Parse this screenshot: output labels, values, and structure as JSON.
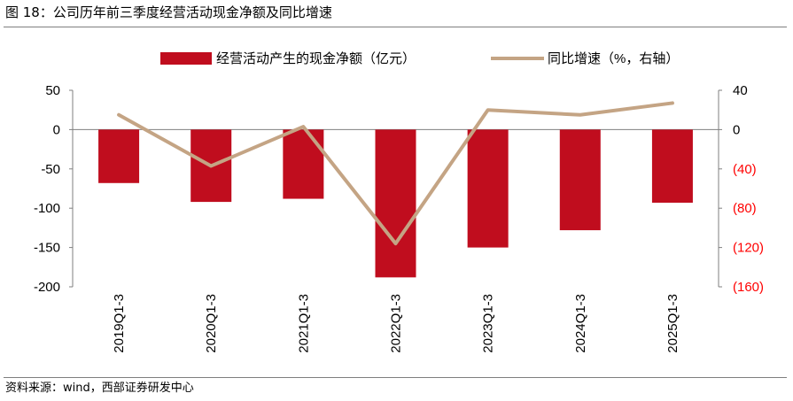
{
  "title": "图 18：公司历年前三季度经营活动现金净额及同比增速",
  "source": "资料来源：wind，西部证券研发中心",
  "colors": {
    "bar": "#c00d1e",
    "line": "#c4a484",
    "right_axis_negative": "#ff0000"
  },
  "chart_data": {
    "type": "bar",
    "categories": [
      "2019Q1-3",
      "2020Q1-3",
      "2021Q1-3",
      "2022Q1-3",
      "2023Q1-3",
      "2024Q1-3",
      "2025Q1-3"
    ],
    "series": [
      {
        "name": "经营活动产生的现金净额（亿元）",
        "type": "bar",
        "axis": "left",
        "values": [
          -68,
          -92,
          -88,
          -188,
          -150,
          -128,
          -93
        ]
      },
      {
        "name": "同比增速（%，右轴）",
        "type": "line",
        "axis": "right",
        "values": [
          15,
          -37,
          3,
          -116,
          20,
          15,
          27
        ]
      }
    ],
    "y_left": {
      "ylim": [
        -200,
        50
      ],
      "ticks": [
        "50",
        "0",
        "-50",
        "-100",
        "-150",
        "-200"
      ],
      "tick_values": [
        50,
        0,
        -50,
        -100,
        -150,
        -200
      ]
    },
    "y_right": {
      "ylim": [
        -160,
        40
      ],
      "ticks": [
        "40",
        "0",
        "(40)",
        "(80)",
        "(120)",
        "(160)"
      ],
      "tick_values": [
        40,
        0,
        -40,
        -80,
        -120,
        -160
      ]
    },
    "legend_position": "top",
    "grid": false
  }
}
